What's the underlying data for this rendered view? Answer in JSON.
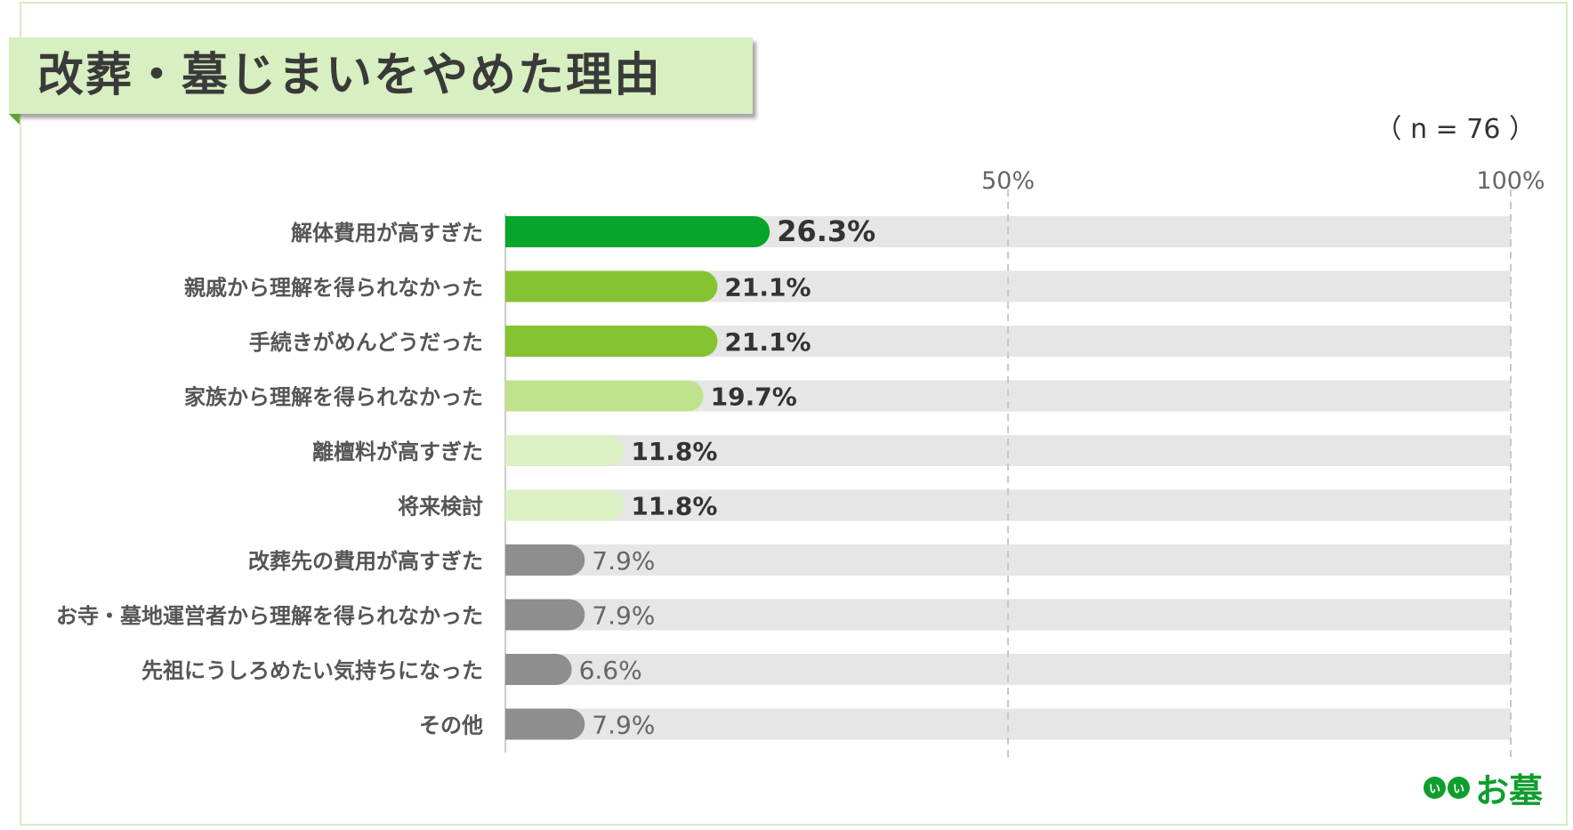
{
  "header": {
    "title": "改葬・墓じまいをやめた理由",
    "sample_size": "（ n = 76 ）"
  },
  "logo": {
    "badge_chars": [
      "い",
      "い"
    ],
    "text": "お墓",
    "color": "#0f9e2e"
  },
  "chart_data": {
    "type": "bar",
    "orientation": "horizontal",
    "xlim": [
      0,
      100
    ],
    "x_ticks": [
      {
        "value": 50,
        "label": "50%"
      },
      {
        "value": 100,
        "label": "100%"
      }
    ],
    "grid": "dashed vertical at 50% and 100%",
    "categories": [
      "解体費用が高すぎた",
      "親戚から理解を得られなかった",
      "手続きがめんどうだった",
      "家族から理解を得られなかった",
      "離檀料が高すぎた",
      "将来検討",
      "改葬先の費用が高すぎた",
      "お寺・墓地運営者から理解を得られなかった",
      "先祖にうしろめたい気持ちになった",
      "その他"
    ],
    "values": [
      26.3,
      21.1,
      21.1,
      19.7,
      11.8,
      11.8,
      7.9,
      7.9,
      6.6,
      7.9
    ],
    "value_labels": [
      "26.3%",
      "21.1%",
      "21.1%",
      "19.7%",
      "11.8%",
      "11.8%",
      "7.9%",
      "7.9%",
      "6.6%",
      "7.9%"
    ],
    "bar_colors": [
      "#06a62c",
      "#86c332",
      "#86c332",
      "#bfe38c",
      "#dbf0c3",
      "#dbf0c3",
      "#8e8e8e",
      "#8e8e8e",
      "#8e8e8e",
      "#8e8e8e"
    ],
    "track_color": "#e6e6e6"
  }
}
